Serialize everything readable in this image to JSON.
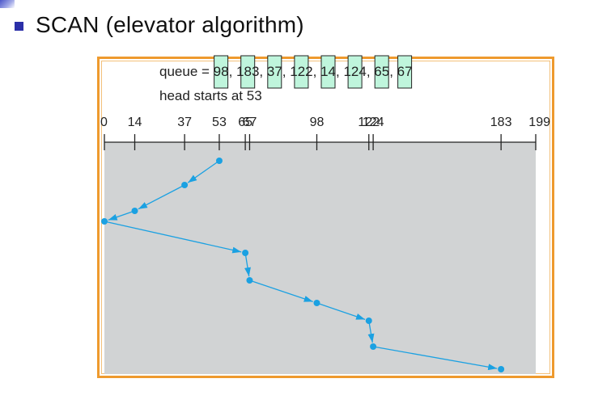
{
  "slide": {
    "title": "SCAN (elevator algorithm)"
  },
  "queue": {
    "label": "queue = ",
    "items": [
      "98",
      "183",
      "37",
      "122",
      "14",
      "124",
      "65",
      "67"
    ]
  },
  "head": {
    "label": "head starts at ",
    "value": "53"
  },
  "axis": {
    "ticks": [
      "0",
      "14",
      "37",
      "53",
      "65",
      "67",
      "98",
      "122",
      "124",
      "183",
      "199"
    ],
    "min": 0,
    "max": 199
  },
  "path": [
    53,
    37,
    14,
    0,
    65,
    67,
    98,
    122,
    124,
    183
  ],
  "colors": {
    "path": "#1ba1e2",
    "highlight": "#bff5dc",
    "plot_bg": "#d1d3d4",
    "frame": "#ee9a2e"
  }
}
